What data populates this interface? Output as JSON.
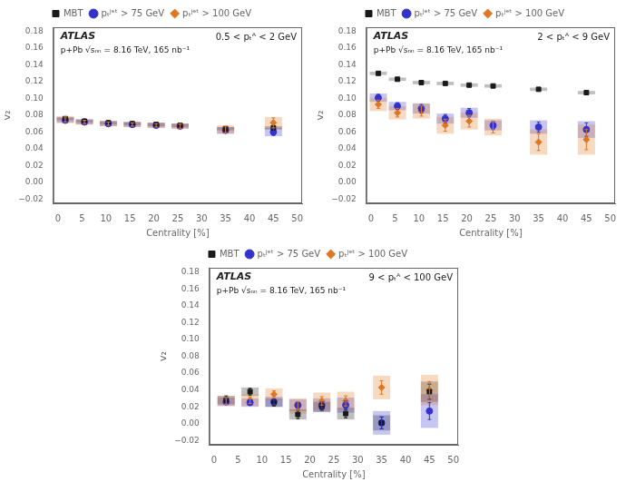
{
  "chart_data": [
    {
      "type": "scatter",
      "xlabel": "Centrality [%]",
      "ylabel": "v₂",
      "annotations": [
        "ATLAS",
        "0.5 < pₜᴬ < 2 GeV",
        "p+Pb √sₙₙ = 8.16 TeV, 165 nb⁻¹"
      ],
      "x": [
        1.5,
        5.5,
        10.5,
        15.5,
        20.5,
        25.5,
        35.0,
        45.0
      ],
      "series": [
        {
          "name": "MBT",
          "color": "#1a1a1a",
          "marker": "square",
          "values": [
            0.076,
            0.073,
            0.071,
            0.07,
            0.069,
            0.068,
            0.064,
            0.065
          ],
          "errors": [
            0.0008,
            0.0005,
            0.0005,
            0.0005,
            0.0005,
            0.0005,
            0.0006,
            0.0008
          ],
          "syst": [
            0.002,
            0.002,
            0.002,
            0.002,
            0.002,
            0.002,
            0.002,
            0.002
          ]
        },
        {
          "name": "pₜʲᵉᵗ > 75 GeV",
          "color": "#3333cc",
          "marker": "circle",
          "values": [
            0.074,
            0.072,
            0.07,
            0.069,
            0.068,
            0.067,
            0.062,
            0.06
          ],
          "errors": [
            0.002,
            0.0015,
            0.0015,
            0.002,
            0.002,
            0.002,
            0.003,
            0.004
          ],
          "syst": [
            0.003,
            0.003,
            0.003,
            0.003,
            0.003,
            0.003,
            0.004,
            0.005
          ]
        },
        {
          "name": "pₜʲᵉᵗ > 100 GeV",
          "color": "#dd7722",
          "marker": "diamond",
          "values": [
            0.075,
            0.072,
            0.07,
            0.069,
            0.068,
            0.067,
            0.063,
            0.071
          ],
          "errors": [
            0.003,
            0.002,
            0.002,
            0.002,
            0.002,
            0.003,
            0.004,
            0.006
          ],
          "syst": [
            0.004,
            0.003,
            0.003,
            0.003,
            0.003,
            0.003,
            0.005,
            0.007
          ]
        }
      ],
      "xlim": [
        -1,
        51
      ],
      "ylim": [
        -0.025,
        0.185
      ],
      "xticks": [
        0,
        5,
        10,
        15,
        20,
        25,
        30,
        35,
        40,
        45,
        50
      ],
      "yticks": [
        {
          "value": -0.02,
          "label": "−0.02"
        },
        {
          "value": 0.0,
          "label": "0.00"
        },
        0.02,
        0.04,
        0.06,
        0.08,
        {
          "value": 0.1,
          "label": "0.10"
        },
        0.12,
        0.14,
        0.16,
        0.18
      ],
      "grid": false,
      "legend": "top"
    },
    {
      "type": "scatter",
      "xlabel": "Centrality [%]",
      "ylabel": "v₂",
      "annotations": [
        "ATLAS",
        "2 < pₜᴬ < 9 GeV",
        "p+Pb √sₙₙ = 8.16 TeV, 165 nb⁻¹"
      ],
      "x": [
        1.5,
        5.5,
        10.5,
        15.5,
        20.5,
        25.5,
        35.0,
        45.0
      ],
      "series": [
        {
          "name": "MBT",
          "color": "#1a1a1a",
          "marker": "square",
          "values": [
            0.13,
            0.123,
            0.119,
            0.118,
            0.116,
            0.115,
            0.111,
            0.107
          ],
          "errors": [
            0.001,
            0.0008,
            0.0007,
            0.0007,
            0.0007,
            0.0007,
            0.0009,
            0.001
          ],
          "syst": [
            0.002,
            0.002,
            0.002,
            0.002,
            0.002,
            0.002,
            0.002,
            0.002
          ]
        },
        {
          "name": "pₜʲᵉᵗ > 75 GeV",
          "color": "#3333cc",
          "marker": "circle",
          "values": [
            0.101,
            0.091,
            0.088,
            0.076,
            0.083,
            0.068,
            0.066,
            0.063
          ],
          "errors": [
            0.004,
            0.004,
            0.005,
            0.005,
            0.005,
            0.005,
            0.006,
            0.008
          ],
          "syst": [
            0.005,
            0.005,
            0.006,
            0.006,
            0.006,
            0.006,
            0.008,
            0.01
          ]
        },
        {
          "name": "pₜʲᵉᵗ > 100 GeV",
          "color": "#dd7722",
          "marker": "diamond",
          "values": [
            0.093,
            0.083,
            0.085,
            0.068,
            0.073,
            0.066,
            0.048,
            0.051
          ],
          "errors": [
            0.005,
            0.005,
            0.006,
            0.007,
            0.007,
            0.007,
            0.01,
            0.012
          ],
          "syst": [
            0.008,
            0.008,
            0.009,
            0.01,
            0.01,
            0.01,
            0.015,
            0.018
          ]
        }
      ],
      "xlim": [
        -1,
        51
      ],
      "ylim": [
        -0.025,
        0.185
      ],
      "xticks": [
        0,
        5,
        10,
        15,
        20,
        25,
        30,
        35,
        40,
        45,
        50
      ],
      "yticks": [
        {
          "value": -0.02,
          "label": "−0.02"
        },
        {
          "value": 0.0,
          "label": "0.00"
        },
        0.02,
        0.04,
        0.06,
        0.08,
        {
          "value": 0.1,
          "label": "0.10"
        },
        0.12,
        0.14,
        0.16,
        0.18
      ],
      "grid": false,
      "legend": "top"
    },
    {
      "type": "scatter",
      "xlabel": "Centrality [%]",
      "ylabel": "v₂",
      "annotations": [
        "ATLAS",
        "9 < pₜᴬ < 100 GeV",
        "p+Pb √sₙₙ = 8.16 TeV, 165 nb⁻¹"
      ],
      "x": [
        2.5,
        7.5,
        12.5,
        17.5,
        22.5,
        27.5,
        35.0,
        45.0
      ],
      "series": [
        {
          "name": "MBT",
          "color": "#1a1a1a",
          "marker": "square",
          "values": [
            0.028,
            0.038,
            0.025,
            0.011,
            0.02,
            0.012,
            0.001,
            0.038
          ],
          "errors": [
            0.005,
            0.004,
            0.004,
            0.005,
            0.004,
            0.005,
            0.007,
            0.009
          ],
          "syst": [
            0.005,
            0.005,
            0.005,
            0.006,
            0.006,
            0.007,
            0.009,
            0.012
          ]
        },
        {
          "name": "pₜʲᵉᵗ > 75 GeV",
          "color": "#3333cc",
          "marker": "circle",
          "values": [
            0.026,
            0.025,
            0.026,
            0.022,
            0.022,
            0.022,
            0.001,
            0.015
          ],
          "errors": [
            0.003,
            0.003,
            0.003,
            0.004,
            0.004,
            0.005,
            0.007,
            0.01
          ],
          "syst": [
            0.005,
            0.005,
            0.006,
            0.007,
            0.008,
            0.009,
            0.014,
            0.02
          ]
        },
        {
          "name": "pₜʲᵉᵗ > 100 GeV",
          "color": "#dd7722",
          "marker": "diamond",
          "values": [
            0.027,
            0.028,
            0.035,
            0.021,
            0.027,
            0.027,
            0.043,
            0.04
          ],
          "errors": [
            0.004,
            0.004,
            0.004,
            0.005,
            0.005,
            0.006,
            0.008,
            0.01
          ],
          "syst": [
            0.006,
            0.007,
            0.007,
            0.009,
            0.01,
            0.011,
            0.014,
            0.018
          ]
        }
      ],
      "xlim": [
        -1,
        51
      ],
      "ylim": [
        -0.025,
        0.185
      ],
      "xticks": [
        0,
        5,
        10,
        15,
        20,
        25,
        30,
        35,
        40,
        45,
        50
      ],
      "yticks": [
        {
          "value": -0.02,
          "label": "−0.02"
        },
        {
          "value": 0.0,
          "label": "0.00"
        },
        0.02,
        0.04,
        0.06,
        0.08,
        {
          "value": 0.1,
          "label": "0.10"
        },
        0.12,
        0.14,
        0.16,
        0.18
      ],
      "grid": false,
      "legend": "top"
    }
  ]
}
